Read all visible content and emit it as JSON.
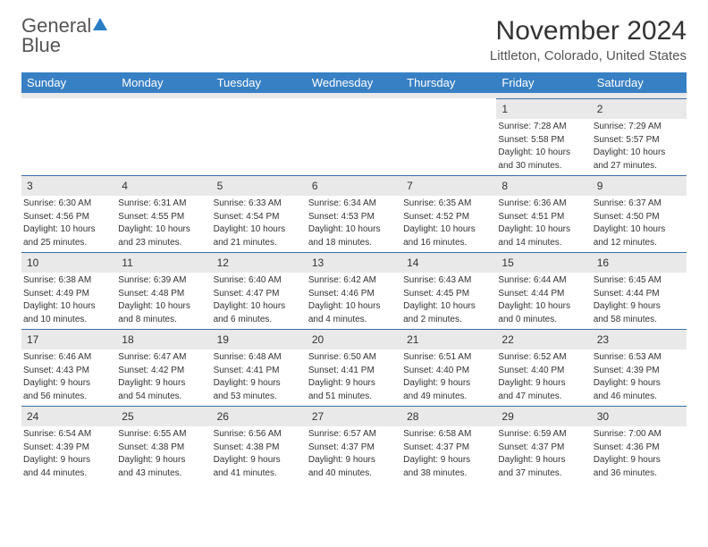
{
  "logo": {
    "word1": "General",
    "word2": "Blue"
  },
  "title": "November 2024",
  "location": "Littleton, Colorado, United States",
  "colors": {
    "header_bg": "#3880c4",
    "daynum_bg": "#e9e9e9",
    "day_border": "#3a6fa6",
    "logo_blue": "#2a7cc4"
  },
  "weekdays": [
    "Sunday",
    "Monday",
    "Tuesday",
    "Wednesday",
    "Thursday",
    "Friday",
    "Saturday"
  ],
  "weeks": [
    [
      null,
      null,
      null,
      null,
      null,
      {
        "n": "1",
        "sunrise": "Sunrise: 7:28 AM",
        "sunset": "Sunset: 5:58 PM",
        "day1": "Daylight: 10 hours",
        "day2": "and 30 minutes."
      },
      {
        "n": "2",
        "sunrise": "Sunrise: 7:29 AM",
        "sunset": "Sunset: 5:57 PM",
        "day1": "Daylight: 10 hours",
        "day2": "and 27 minutes."
      }
    ],
    [
      {
        "n": "3",
        "sunrise": "Sunrise: 6:30 AM",
        "sunset": "Sunset: 4:56 PM",
        "day1": "Daylight: 10 hours",
        "day2": "and 25 minutes."
      },
      {
        "n": "4",
        "sunrise": "Sunrise: 6:31 AM",
        "sunset": "Sunset: 4:55 PM",
        "day1": "Daylight: 10 hours",
        "day2": "and 23 minutes."
      },
      {
        "n": "5",
        "sunrise": "Sunrise: 6:33 AM",
        "sunset": "Sunset: 4:54 PM",
        "day1": "Daylight: 10 hours",
        "day2": "and 21 minutes."
      },
      {
        "n": "6",
        "sunrise": "Sunrise: 6:34 AM",
        "sunset": "Sunset: 4:53 PM",
        "day1": "Daylight: 10 hours",
        "day2": "and 18 minutes."
      },
      {
        "n": "7",
        "sunrise": "Sunrise: 6:35 AM",
        "sunset": "Sunset: 4:52 PM",
        "day1": "Daylight: 10 hours",
        "day2": "and 16 minutes."
      },
      {
        "n": "8",
        "sunrise": "Sunrise: 6:36 AM",
        "sunset": "Sunset: 4:51 PM",
        "day1": "Daylight: 10 hours",
        "day2": "and 14 minutes."
      },
      {
        "n": "9",
        "sunrise": "Sunrise: 6:37 AM",
        "sunset": "Sunset: 4:50 PM",
        "day1": "Daylight: 10 hours",
        "day2": "and 12 minutes."
      }
    ],
    [
      {
        "n": "10",
        "sunrise": "Sunrise: 6:38 AM",
        "sunset": "Sunset: 4:49 PM",
        "day1": "Daylight: 10 hours",
        "day2": "and 10 minutes."
      },
      {
        "n": "11",
        "sunrise": "Sunrise: 6:39 AM",
        "sunset": "Sunset: 4:48 PM",
        "day1": "Daylight: 10 hours",
        "day2": "and 8 minutes."
      },
      {
        "n": "12",
        "sunrise": "Sunrise: 6:40 AM",
        "sunset": "Sunset: 4:47 PM",
        "day1": "Daylight: 10 hours",
        "day2": "and 6 minutes."
      },
      {
        "n": "13",
        "sunrise": "Sunrise: 6:42 AM",
        "sunset": "Sunset: 4:46 PM",
        "day1": "Daylight: 10 hours",
        "day2": "and 4 minutes."
      },
      {
        "n": "14",
        "sunrise": "Sunrise: 6:43 AM",
        "sunset": "Sunset: 4:45 PM",
        "day1": "Daylight: 10 hours",
        "day2": "and 2 minutes."
      },
      {
        "n": "15",
        "sunrise": "Sunrise: 6:44 AM",
        "sunset": "Sunset: 4:44 PM",
        "day1": "Daylight: 10 hours",
        "day2": "and 0 minutes."
      },
      {
        "n": "16",
        "sunrise": "Sunrise: 6:45 AM",
        "sunset": "Sunset: 4:44 PM",
        "day1": "Daylight: 9 hours",
        "day2": "and 58 minutes."
      }
    ],
    [
      {
        "n": "17",
        "sunrise": "Sunrise: 6:46 AM",
        "sunset": "Sunset: 4:43 PM",
        "day1": "Daylight: 9 hours",
        "day2": "and 56 minutes."
      },
      {
        "n": "18",
        "sunrise": "Sunrise: 6:47 AM",
        "sunset": "Sunset: 4:42 PM",
        "day1": "Daylight: 9 hours",
        "day2": "and 54 minutes."
      },
      {
        "n": "19",
        "sunrise": "Sunrise: 6:48 AM",
        "sunset": "Sunset: 4:41 PM",
        "day1": "Daylight: 9 hours",
        "day2": "and 53 minutes."
      },
      {
        "n": "20",
        "sunrise": "Sunrise: 6:50 AM",
        "sunset": "Sunset: 4:41 PM",
        "day1": "Daylight: 9 hours",
        "day2": "and 51 minutes."
      },
      {
        "n": "21",
        "sunrise": "Sunrise: 6:51 AM",
        "sunset": "Sunset: 4:40 PM",
        "day1": "Daylight: 9 hours",
        "day2": "and 49 minutes."
      },
      {
        "n": "22",
        "sunrise": "Sunrise: 6:52 AM",
        "sunset": "Sunset: 4:40 PM",
        "day1": "Daylight: 9 hours",
        "day2": "and 47 minutes."
      },
      {
        "n": "23",
        "sunrise": "Sunrise: 6:53 AM",
        "sunset": "Sunset: 4:39 PM",
        "day1": "Daylight: 9 hours",
        "day2": "and 46 minutes."
      }
    ],
    [
      {
        "n": "24",
        "sunrise": "Sunrise: 6:54 AM",
        "sunset": "Sunset: 4:39 PM",
        "day1": "Daylight: 9 hours",
        "day2": "and 44 minutes."
      },
      {
        "n": "25",
        "sunrise": "Sunrise: 6:55 AM",
        "sunset": "Sunset: 4:38 PM",
        "day1": "Daylight: 9 hours",
        "day2": "and 43 minutes."
      },
      {
        "n": "26",
        "sunrise": "Sunrise: 6:56 AM",
        "sunset": "Sunset: 4:38 PM",
        "day1": "Daylight: 9 hours",
        "day2": "and 41 minutes."
      },
      {
        "n": "27",
        "sunrise": "Sunrise: 6:57 AM",
        "sunset": "Sunset: 4:37 PM",
        "day1": "Daylight: 9 hours",
        "day2": "and 40 minutes."
      },
      {
        "n": "28",
        "sunrise": "Sunrise: 6:58 AM",
        "sunset": "Sunset: 4:37 PM",
        "day1": "Daylight: 9 hours",
        "day2": "and 38 minutes."
      },
      {
        "n": "29",
        "sunrise": "Sunrise: 6:59 AM",
        "sunset": "Sunset: 4:37 PM",
        "day1": "Daylight: 9 hours",
        "day2": "and 37 minutes."
      },
      {
        "n": "30",
        "sunrise": "Sunrise: 7:00 AM",
        "sunset": "Sunset: 4:36 PM",
        "day1": "Daylight: 9 hours",
        "day2": "and 36 minutes."
      }
    ]
  ]
}
